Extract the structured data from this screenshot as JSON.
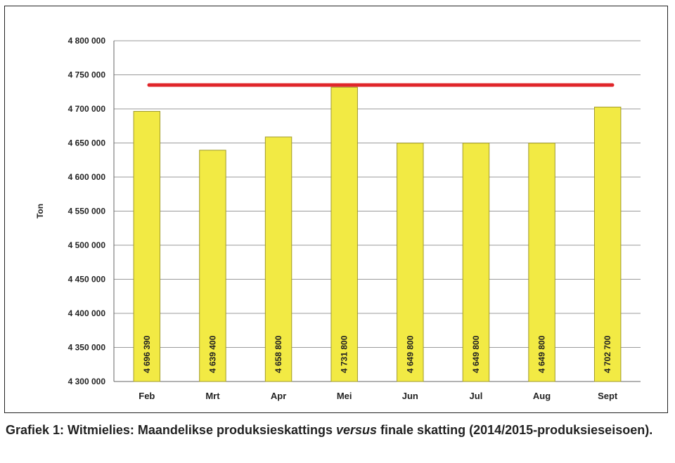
{
  "chart_data": {
    "type": "bar",
    "categories": [
      "Feb",
      "Mrt",
      "Apr",
      "Mei",
      "Jun",
      "Jul",
      "Aug",
      "Sept"
    ],
    "values": [
      4696390,
      4639400,
      4658800,
      4731800,
      4649800,
      4649800,
      4649800,
      4702700
    ],
    "value_labels": [
      "4 696 390",
      "4 639 400",
      "4 658 800",
      "4 731 800",
      "4 649 800",
      "4 649 800",
      "4 649 800",
      "4 702 700"
    ],
    "ylabel": "Ton",
    "ylim": [
      4300000,
      4800000
    ],
    "yticks": [
      4300000,
      4350000,
      4400000,
      4450000,
      4500000,
      4550000,
      4600000,
      4650000,
      4700000,
      4750000,
      4800000
    ],
    "ytick_labels": [
      "4 300 000",
      "4 350 000",
      "4 400 000",
      "4 450 000",
      "4 500 000",
      "4 550 000",
      "4 600 000",
      "4 650 000",
      "4 700 000",
      "4 750 000",
      "4 800 000"
    ],
    "reference_line_value": 4735000,
    "grid": true,
    "colors": {
      "bar_fill": "#f2ea44",
      "bar_stroke": "#a09a2a",
      "reference_line": "#e0262a",
      "grid": "#9a9a9a"
    }
  },
  "caption": {
    "part1": "Grafiek 1: Witmielies: Maandelikse produksieskattings ",
    "italic": "versus",
    "part2": " finale skatting (2014/2015-produksieseisoen)."
  }
}
